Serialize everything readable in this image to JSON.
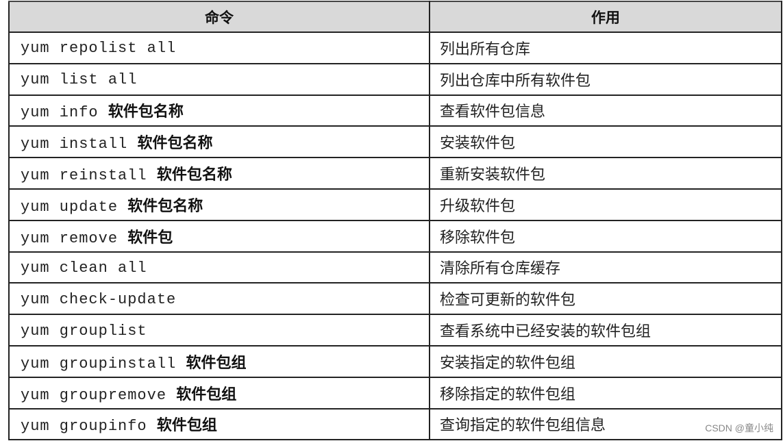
{
  "table": {
    "headers": [
      "命令",
      "作用"
    ],
    "rows": [
      {
        "cmd": "yum repolist all",
        "arg": "",
        "desc": "列出所有仓库"
      },
      {
        "cmd": "yum list all",
        "arg": "",
        "desc": "列出仓库中所有软件包"
      },
      {
        "cmd": "yum info ",
        "arg": "软件包名称",
        "desc": "查看软件包信息"
      },
      {
        "cmd": "yum install ",
        "arg": "软件包名称",
        "desc": "安装软件包"
      },
      {
        "cmd": "yum reinstall ",
        "arg": "软件包名称",
        "desc": "重新安装软件包"
      },
      {
        "cmd": "yum update ",
        "arg": "软件包名称",
        "desc": "升级软件包"
      },
      {
        "cmd": "yum remove ",
        "arg": "软件包",
        "desc": "移除软件包"
      },
      {
        "cmd": "yum clean all",
        "arg": "",
        "desc": "清除所有仓库缓存"
      },
      {
        "cmd": "yum check-update",
        "arg": "",
        "desc": "检查可更新的软件包"
      },
      {
        "cmd": "yum grouplist",
        "arg": "",
        "desc": "查看系统中已经安装的软件包组"
      },
      {
        "cmd": "yum groupinstall ",
        "arg": "软件包组",
        "desc": "安装指定的软件包组"
      },
      {
        "cmd": "yum groupremove ",
        "arg": "软件包组",
        "desc": "移除指定的软件包组"
      },
      {
        "cmd": "yum groupinfo ",
        "arg": "软件包组",
        "desc": "查询指定的软件包组信息"
      }
    ]
  },
  "watermark": "CSDN @童小纯"
}
